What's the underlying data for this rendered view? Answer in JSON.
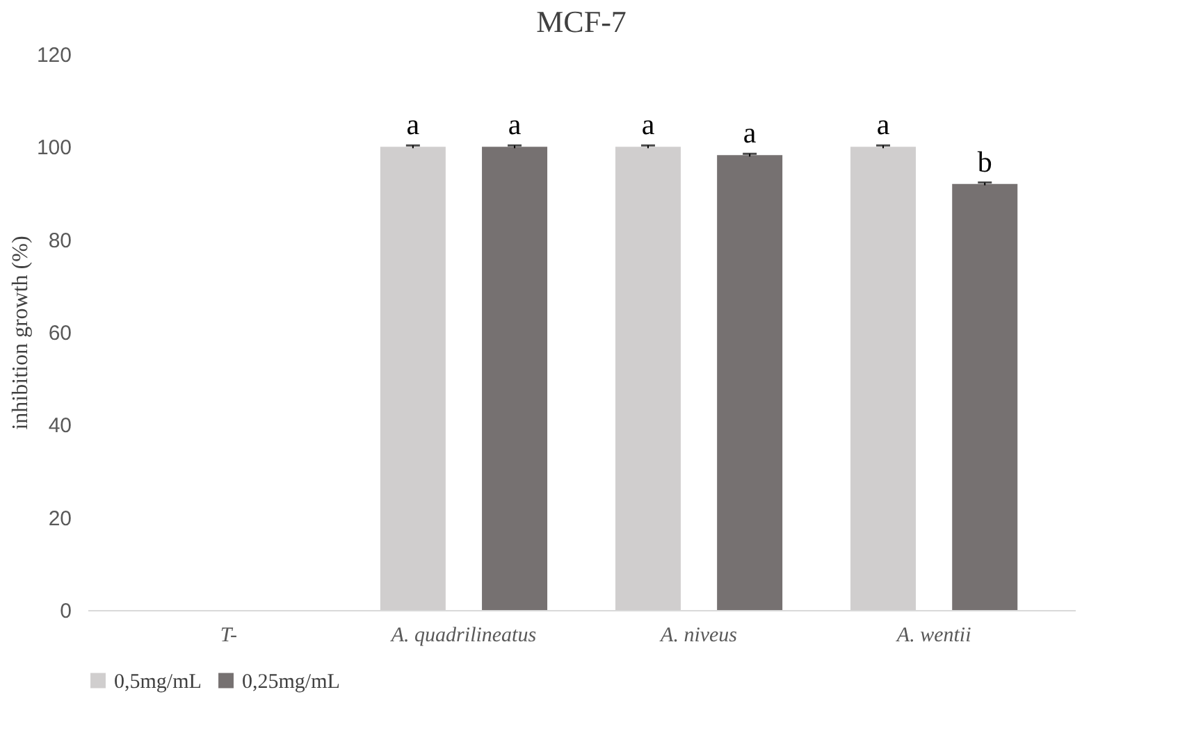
{
  "chart_data": {
    "type": "bar",
    "title": "MCF-7",
    "ylabel": "inhibition growth (%)",
    "categories": [
      "T-",
      "A. quadrilineatus",
      "A. niveus",
      "A. wentii"
    ],
    "series": [
      {
        "name": "0,5mg/mL",
        "color": "#d0cece",
        "values": [
          0,
          100,
          100,
          100
        ],
        "errors": [
          null,
          0.3,
          0.3,
          0.3
        ],
        "value_labels": [
          null,
          "a",
          "a",
          "a"
        ]
      },
      {
        "name": "0,25mg/mL",
        "color": "#767171",
        "values": [
          0,
          100,
          98.2,
          92
        ],
        "errors": [
          null,
          0.3,
          0.3,
          0.3
        ],
        "value_labels": [
          null,
          "a",
          "a",
          "b"
        ]
      }
    ],
    "ylim": [
      0,
      120
    ],
    "yticks": [
      0,
      20,
      40,
      60,
      80,
      100,
      120
    ],
    "grid": false,
    "legend": "bottom"
  }
}
